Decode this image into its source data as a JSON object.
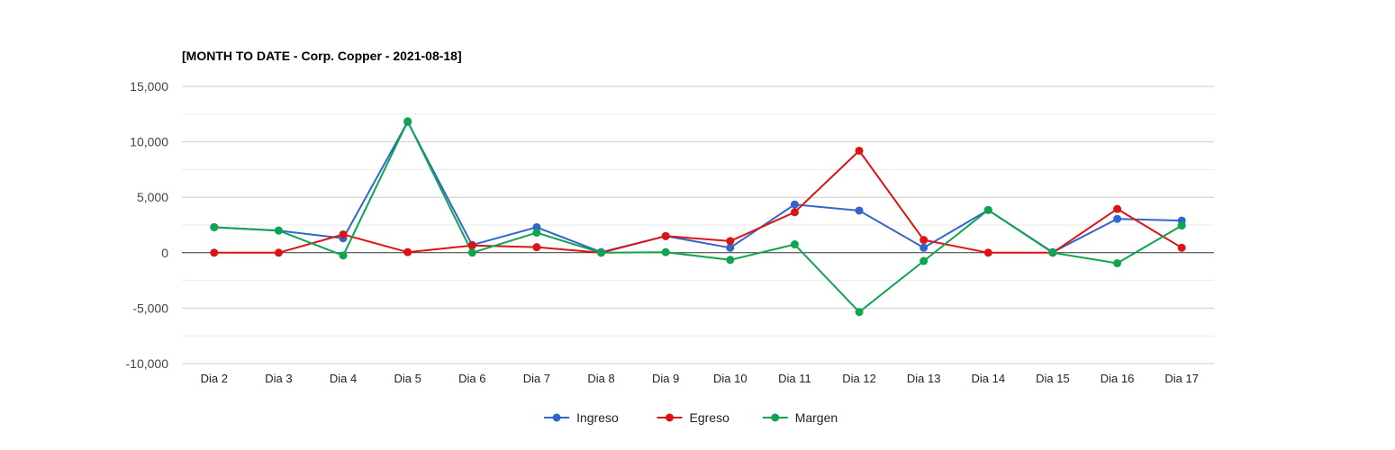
{
  "chart_data": {
    "type": "line",
    "title": "[MONTH TO DATE - Corp. Copper - 2021-08-18]",
    "categories": [
      "Dia 2",
      "Dia 3",
      "Dia 4",
      "Dia 5",
      "Dia 6",
      "Dia 7",
      "Dia 8",
      "Dia 9",
      "Dia 10",
      "Dia 11",
      "Dia 12",
      "Dia 13",
      "Dia 14",
      "Dia 15",
      "Dia 16",
      "Dia 17"
    ],
    "ylim": [
      -10000,
      15000
    ],
    "yticks": [
      15000,
      10000,
      5000,
      0,
      -5000,
      -10000
    ],
    "ytick_labels": [
      "15,000",
      "10,000",
      "5,000",
      "0",
      "-5,000",
      "-10,000"
    ],
    "grid": true,
    "legend_position": "bottom",
    "series": [
      {
        "name": "Ingreso",
        "color": "#3366cc",
        "values": [
          2300,
          2000,
          1300,
          11800,
          700,
          2300,
          50,
          1500,
          450,
          4350,
          3800,
          450,
          3850,
          50,
          3050,
          2900
        ]
      },
      {
        "name": "Egreso",
        "color": "#dc1414",
        "values": [
          0,
          0,
          1650,
          50,
          650,
          500,
          0,
          1500,
          1050,
          3650,
          9200,
          1150,
          0,
          0,
          3950,
          450
        ]
      },
      {
        "name": "Margen",
        "color": "#0fa44e",
        "values": [
          2300,
          2000,
          -250,
          11850,
          0,
          1800,
          0,
          50,
          -650,
          750,
          -5350,
          -750,
          3850,
          0,
          -950,
          2450
        ]
      }
    ]
  }
}
